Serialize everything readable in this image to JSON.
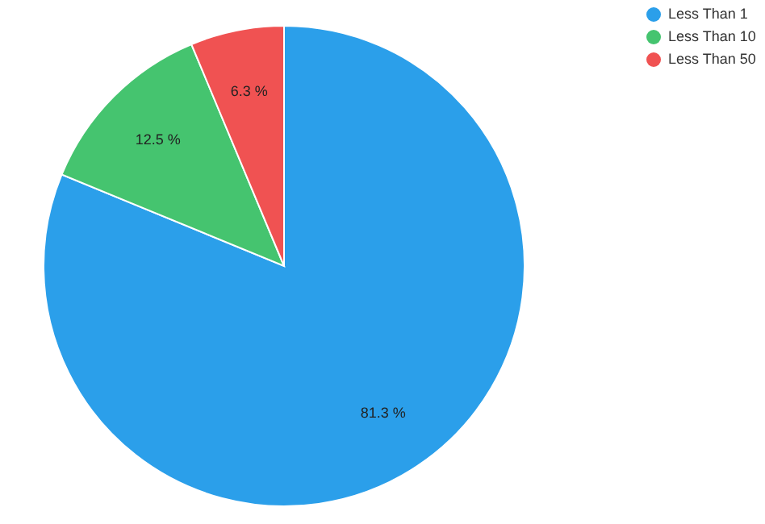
{
  "chart_data": {
    "type": "pie",
    "categories": [
      "Less Than 1",
      "Less Than 10",
      "Less Than 50"
    ],
    "values": [
      81.3,
      12.5,
      6.3
    ],
    "colors": [
      "#2b9fea",
      "#45c46f",
      "#f05252"
    ],
    "value_labels": [
      "81.3 %",
      "12.5 %",
      "6.3 %"
    ],
    "legend": "top right"
  }
}
